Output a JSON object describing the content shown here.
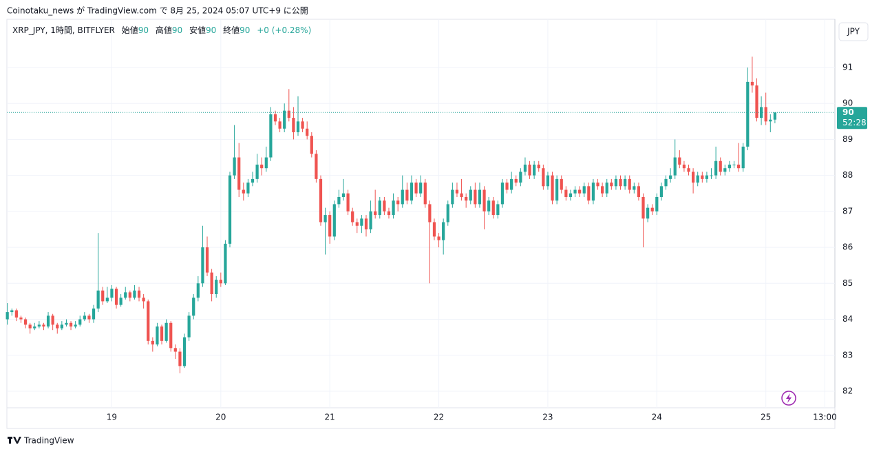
{
  "header": "Coinotaku_news が TradingView.com で 8月 25, 2024 05:07 UTC+9 に公開",
  "footer": "TradingView",
  "chart_data": {
    "type": "candlestick",
    "symbol": "XRP_JPY, 1時間, BITFLYER",
    "ohlc_labels": [
      {
        "name": "始値",
        "value": "90"
      },
      {
        "name": "高値",
        "value": "90"
      },
      {
        "name": "安値",
        "value": "90"
      },
      {
        "name": "終値",
        "value": "90"
      }
    ],
    "change": "+0 (+0.28%)",
    "currency": "JPY",
    "last_price": {
      "value": 89.75,
      "label": "90"
    },
    "countdown": "52:28",
    "up_color": "#26a69a",
    "down_color": "#ef5350",
    "grid": true,
    "ylim": [
      81.54,
      92.34
    ],
    "yticks": [
      82,
      83,
      84,
      85,
      86,
      87,
      88,
      89,
      90,
      91
    ],
    "xlim": [
      -0.1,
      182.2
    ],
    "xticks": [
      {
        "value": 23,
        "label": "19"
      },
      {
        "value": 47,
        "label": "20"
      },
      {
        "value": 71,
        "label": "21"
      },
      {
        "value": 95,
        "label": "22"
      },
      {
        "value": 119,
        "label": "23"
      },
      {
        "value": 143,
        "label": "24"
      },
      {
        "value": 167,
        "label": "25"
      },
      {
        "value": 180,
        "label": "13:00"
      }
    ],
    "ohlc": [
      [
        84.0,
        84.45,
        83.85,
        84.2
      ],
      [
        84.2,
        84.3,
        84.1,
        84.25
      ],
      [
        84.25,
        84.3,
        83.95,
        84.05
      ],
      [
        84.05,
        84.1,
        83.9,
        84.0
      ],
      [
        84.0,
        84.05,
        83.75,
        83.85
      ],
      [
        83.85,
        83.9,
        83.6,
        83.75
      ],
      [
        83.75,
        83.9,
        83.7,
        83.8
      ],
      [
        83.8,
        83.95,
        83.75,
        83.85
      ],
      [
        83.85,
        83.9,
        83.7,
        83.8
      ],
      [
        83.8,
        84.2,
        83.75,
        84.1
      ],
      [
        84.1,
        84.15,
        83.7,
        83.85
      ],
      [
        83.85,
        83.9,
        83.6,
        83.75
      ],
      [
        83.75,
        83.95,
        83.7,
        83.85
      ],
      [
        83.85,
        84.0,
        83.8,
        83.9
      ],
      [
        83.9,
        83.95,
        83.7,
        83.8
      ],
      [
        83.8,
        83.95,
        83.75,
        83.85
      ],
      [
        83.85,
        84.1,
        83.8,
        84.0
      ],
      [
        84.0,
        84.2,
        83.95,
        84.1
      ],
      [
        84.1,
        84.15,
        83.9,
        84.0
      ],
      [
        84.0,
        84.4,
        83.9,
        84.3
      ],
      [
        84.3,
        86.4,
        84.2,
        84.8
      ],
      [
        84.8,
        84.9,
        84.4,
        84.5
      ],
      [
        84.5,
        84.9,
        84.45,
        84.6
      ],
      [
        84.6,
        84.95,
        84.5,
        84.85
      ],
      [
        84.85,
        84.9,
        84.3,
        84.4
      ],
      [
        84.4,
        84.7,
        84.35,
        84.6
      ],
      [
        84.6,
        84.9,
        84.55,
        84.75
      ],
      [
        84.75,
        84.8,
        84.5,
        84.6
      ],
      [
        84.6,
        84.95,
        84.55,
        84.8
      ],
      [
        84.8,
        84.9,
        84.5,
        84.6
      ],
      [
        84.6,
        84.7,
        84.3,
        84.5
      ],
      [
        84.5,
        84.55,
        83.3,
        83.4
      ],
      [
        83.4,
        83.5,
        83.1,
        83.3
      ],
      [
        83.3,
        83.9,
        83.25,
        83.8
      ],
      [
        83.8,
        83.85,
        83.3,
        83.4
      ],
      [
        83.4,
        84.0,
        83.35,
        83.9
      ],
      [
        83.9,
        83.95,
        83.1,
        83.2
      ],
      [
        83.2,
        83.3,
        82.9,
        83.1
      ],
      [
        83.1,
        83.2,
        82.5,
        82.7
      ],
      [
        82.7,
        83.6,
        82.65,
        83.5
      ],
      [
        83.5,
        84.2,
        83.4,
        84.1
      ],
      [
        84.1,
        84.7,
        84.0,
        84.6
      ],
      [
        84.6,
        85.2,
        84.5,
        85.0
      ],
      [
        85.0,
        86.6,
        84.9,
        86.0
      ],
      [
        86.0,
        86.3,
        85.2,
        85.3
      ],
      [
        85.3,
        85.4,
        84.5,
        84.7
      ],
      [
        84.7,
        85.2,
        84.6,
        85.1
      ],
      [
        85.1,
        85.3,
        84.9,
        85.0
      ],
      [
        85.0,
        86.2,
        84.95,
        86.1
      ],
      [
        86.1,
        88.1,
        86.0,
        88.0
      ],
      [
        88.0,
        89.4,
        87.9,
        88.5
      ],
      [
        88.5,
        88.9,
        87.4,
        87.6
      ],
      [
        87.6,
        87.8,
        87.3,
        87.5
      ],
      [
        87.5,
        87.9,
        87.4,
        87.8
      ],
      [
        87.8,
        88.1,
        87.7,
        87.9
      ],
      [
        87.9,
        88.6,
        87.8,
        88.3
      ],
      [
        88.3,
        88.5,
        88.0,
        88.2
      ],
      [
        88.2,
        88.8,
        88.1,
        88.5
      ],
      [
        88.5,
        89.9,
        88.4,
        89.7
      ],
      [
        89.7,
        89.8,
        89.4,
        89.5
      ],
      [
        89.5,
        89.6,
        89.2,
        89.3
      ],
      [
        89.3,
        90.0,
        89.2,
        89.8
      ],
      [
        89.8,
        90.4,
        89.5,
        89.6
      ],
      [
        89.6,
        89.9,
        89.0,
        89.2
      ],
      [
        89.2,
        90.2,
        89.1,
        89.5
      ],
      [
        89.5,
        89.6,
        89.2,
        89.3
      ],
      [
        89.3,
        89.5,
        89.0,
        89.1
      ],
      [
        89.1,
        89.2,
        88.5,
        88.6
      ],
      [
        88.6,
        88.7,
        87.8,
        87.9
      ],
      [
        87.9,
        88.0,
        86.6,
        86.7
      ],
      [
        86.7,
        87.1,
        85.8,
        86.9
      ],
      [
        86.9,
        87.0,
        86.1,
        86.3
      ],
      [
        86.3,
        87.3,
        86.2,
        87.2
      ],
      [
        87.2,
        87.6,
        87.1,
        87.4
      ],
      [
        87.4,
        87.9,
        87.3,
        87.5
      ],
      [
        87.5,
        87.6,
        86.9,
        87.0
      ],
      [
        87.0,
        87.1,
        86.6,
        86.7
      ],
      [
        86.7,
        86.8,
        86.4,
        86.6
      ],
      [
        86.6,
        86.9,
        86.4,
        86.8
      ],
      [
        86.8,
        86.9,
        86.3,
        86.5
      ],
      [
        86.5,
        87.3,
        86.4,
        87.0
      ],
      [
        87.0,
        87.6,
        86.8,
        86.9
      ],
      [
        86.9,
        87.4,
        86.8,
        87.3
      ],
      [
        87.3,
        87.4,
        86.9,
        87.0
      ],
      [
        87.0,
        87.1,
        86.8,
        86.9
      ],
      [
        86.9,
        87.5,
        86.8,
        87.3
      ],
      [
        87.3,
        87.4,
        87.0,
        87.2
      ],
      [
        87.2,
        88.0,
        87.1,
        87.6
      ],
      [
        87.6,
        87.8,
        87.2,
        87.3
      ],
      [
        87.3,
        88.0,
        87.2,
        87.8
      ],
      [
        87.8,
        87.9,
        87.4,
        87.5
      ],
      [
        87.5,
        88.0,
        87.4,
        87.8
      ],
      [
        87.8,
        87.9,
        87.1,
        87.2
      ],
      [
        87.2,
        87.3,
        85.0,
        86.7
      ],
      [
        86.7,
        86.8,
        86.2,
        86.3
      ],
      [
        86.3,
        86.4,
        86.0,
        86.2
      ],
      [
        86.2,
        86.8,
        85.8,
        86.7
      ],
      [
        86.7,
        87.3,
        86.6,
        87.2
      ],
      [
        87.2,
        87.8,
        87.1,
        87.6
      ],
      [
        87.6,
        87.8,
        87.4,
        87.5
      ],
      [
        87.5,
        87.9,
        87.3,
        87.4
      ],
      [
        87.4,
        87.5,
        87.1,
        87.3
      ],
      [
        87.3,
        87.7,
        87.2,
        87.6
      ],
      [
        87.6,
        87.8,
        87.1,
        87.2
      ],
      [
        87.2,
        87.8,
        87.1,
        87.6
      ],
      [
        87.6,
        87.7,
        86.5,
        87.0
      ],
      [
        87.0,
        87.4,
        86.9,
        87.3
      ],
      [
        87.3,
        87.4,
        86.8,
        86.9
      ],
      [
        86.9,
        87.3,
        86.8,
        87.2
      ],
      [
        87.2,
        87.9,
        87.1,
        87.8
      ],
      [
        87.8,
        87.9,
        87.5,
        87.6
      ],
      [
        87.6,
        88.1,
        87.5,
        87.9
      ],
      [
        87.9,
        88.0,
        87.7,
        87.8
      ],
      [
        87.8,
        88.2,
        87.7,
        88.1
      ],
      [
        88.1,
        88.5,
        88.0,
        88.3
      ],
      [
        88.3,
        88.4,
        87.9,
        88.0
      ],
      [
        88.0,
        88.4,
        87.9,
        88.3
      ],
      [
        88.3,
        88.4,
        88.1,
        88.2
      ],
      [
        88.2,
        88.3,
        87.6,
        87.7
      ],
      [
        87.7,
        88.1,
        87.6,
        88.0
      ],
      [
        88.0,
        88.1,
        87.2,
        87.3
      ],
      [
        87.3,
        88.0,
        87.2,
        87.9
      ],
      [
        87.9,
        88.0,
        87.5,
        87.6
      ],
      [
        87.6,
        87.7,
        87.3,
        87.4
      ],
      [
        87.4,
        87.6,
        87.3,
        87.5
      ],
      [
        87.5,
        87.7,
        87.4,
        87.6
      ],
      [
        87.6,
        87.7,
        87.4,
        87.5
      ],
      [
        87.5,
        87.8,
        87.4,
        87.7
      ],
      [
        87.7,
        87.8,
        87.2,
        87.3
      ],
      [
        87.3,
        87.9,
        87.2,
        87.8
      ],
      [
        87.8,
        87.9,
        87.6,
        87.7
      ],
      [
        87.7,
        87.8,
        87.4,
        87.5
      ],
      [
        87.5,
        87.9,
        87.4,
        87.8
      ],
      [
        87.8,
        87.9,
        87.6,
        87.7
      ],
      [
        87.7,
        88.0,
        87.6,
        87.9
      ],
      [
        87.9,
        88.0,
        87.6,
        87.7
      ],
      [
        87.7,
        88.0,
        87.6,
        87.9
      ],
      [
        87.9,
        88.0,
        87.5,
        87.6
      ],
      [
        87.6,
        87.8,
        87.5,
        87.7
      ],
      [
        87.7,
        87.8,
        87.3,
        87.4
      ],
      [
        87.4,
        87.5,
        86.0,
        86.8
      ],
      [
        86.8,
        87.2,
        86.7,
        87.1
      ],
      [
        87.1,
        87.2,
        86.9,
        87.0
      ],
      [
        87.0,
        87.5,
        86.9,
        87.4
      ],
      [
        87.4,
        87.8,
        87.3,
        87.7
      ],
      [
        87.7,
        88.0,
        87.6,
        87.9
      ],
      [
        87.9,
        88.2,
        87.8,
        88.0
      ],
      [
        88.0,
        89.0,
        87.9,
        88.5
      ],
      [
        88.5,
        88.7,
        88.2,
        88.3
      ],
      [
        88.3,
        88.4,
        88.1,
        88.2
      ],
      [
        88.2,
        88.3,
        88.0,
        88.1
      ],
      [
        88.1,
        88.2,
        87.5,
        87.8
      ],
      [
        87.8,
        88.1,
        87.7,
        88.0
      ],
      [
        88.0,
        88.1,
        87.8,
        87.9
      ],
      [
        87.9,
        88.1,
        87.8,
        88.0
      ],
      [
        88.0,
        88.2,
        87.9,
        88.0
      ],
      [
        88.0,
        88.8,
        87.9,
        88.4
      ],
      [
        88.4,
        88.5,
        88.0,
        88.1
      ],
      [
        88.1,
        88.3,
        88.0,
        88.2
      ],
      [
        88.2,
        88.4,
        88.1,
        88.3
      ],
      [
        88.3,
        88.4,
        88.2,
        88.3
      ],
      [
        88.3,
        88.9,
        88.1,
        88.2
      ],
      [
        88.2,
        88.9,
        88.1,
        88.8
      ],
      [
        88.8,
        91.0,
        88.7,
        90.6
      ],
      [
        90.6,
        91.3,
        90.3,
        90.5
      ],
      [
        90.5,
        90.7,
        89.5,
        89.6
      ],
      [
        89.6,
        90.2,
        89.4,
        89.9
      ],
      [
        89.9,
        90.3,
        89.4,
        89.5
      ],
      [
        89.5,
        89.7,
        89.2,
        89.55
      ],
      [
        89.55,
        89.7,
        89.45,
        89.75
      ]
    ]
  }
}
